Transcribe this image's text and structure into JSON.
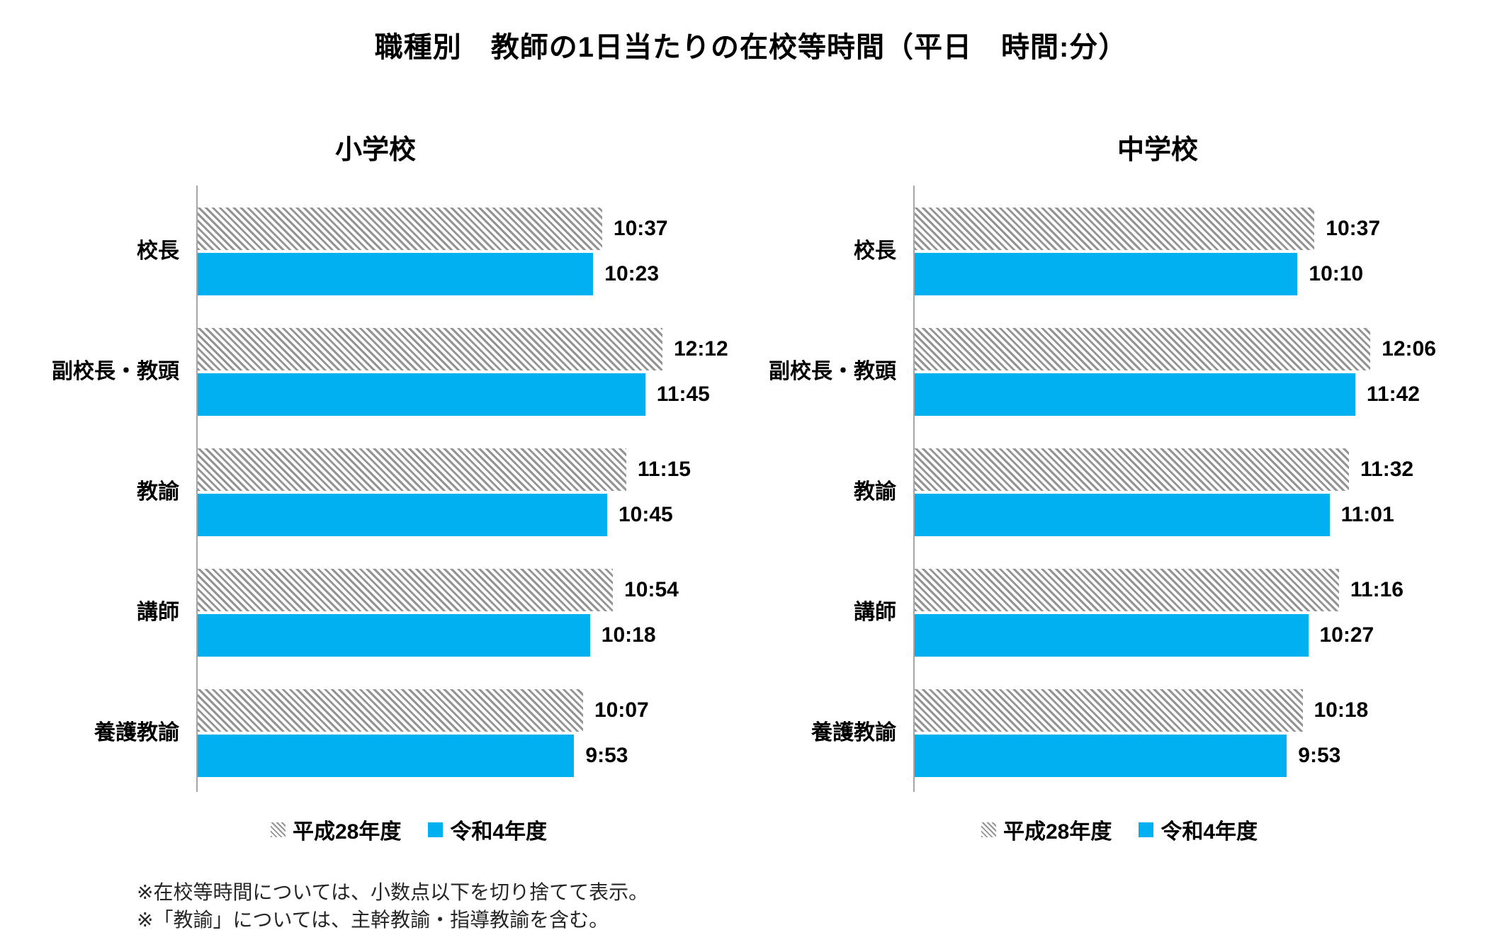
{
  "title": "職種別　教師の1日当たりの在校等時間（平日　時間:分）",
  "colors": {
    "series_blue": "#00B0F0",
    "hatch_gray": "#949494",
    "axis_gray": "#A6A6A6"
  },
  "legend": {
    "items": [
      {
        "label": "平成28年度",
        "style": "hatched"
      },
      {
        "label": "令和4年度",
        "style": "solid-blue"
      }
    ]
  },
  "footnotes": [
    "※在校等時間については、小数点以下を切り捨てて表示。",
    "※「教諭」については、主幹教諭・指導教諭を含む。"
  ],
  "chart_data": [
    {
      "type": "bar",
      "orientation": "horizontal",
      "title": "小学校",
      "unit": "時間:分",
      "x_max_minutes": 780,
      "grid": false,
      "legend_position": "bottom",
      "categories": [
        "校長",
        "副校長・教頭",
        "教諭",
        "講師",
        "養護教諭"
      ],
      "series": [
        {
          "name": "平成28年度",
          "style": "hatched",
          "values": [
            "10:37",
            "12:12",
            "11:15",
            "10:54",
            "10:07"
          ],
          "minutes": [
            637,
            732,
            675,
            654,
            607
          ]
        },
        {
          "name": "令和4年度",
          "style": "solid-blue",
          "values": [
            "10:23",
            "11:45",
            "10:45",
            "10:18",
            "9:53"
          ],
          "minutes": [
            623,
            705,
            645,
            618,
            593
          ]
        }
      ]
    },
    {
      "type": "bar",
      "orientation": "horizontal",
      "title": "中学校",
      "unit": "時間:分",
      "x_max_minutes": 780,
      "grid": false,
      "legend_position": "bottom",
      "categories": [
        "校長",
        "副校長・教頭",
        "教諭",
        "講師",
        "養護教諭"
      ],
      "series": [
        {
          "name": "平成28年度",
          "style": "hatched",
          "values": [
            "10:37",
            "12:06",
            "11:32",
            "11:16",
            "10:18"
          ],
          "minutes": [
            637,
            726,
            692,
            676,
            618
          ]
        },
        {
          "name": "令和4年度",
          "style": "solid-blue",
          "values": [
            "10:10",
            "11:42",
            "11:01",
            "10:27",
            "9:53"
          ],
          "minutes": [
            610,
            702,
            661,
            627,
            593
          ]
        }
      ]
    }
  ]
}
